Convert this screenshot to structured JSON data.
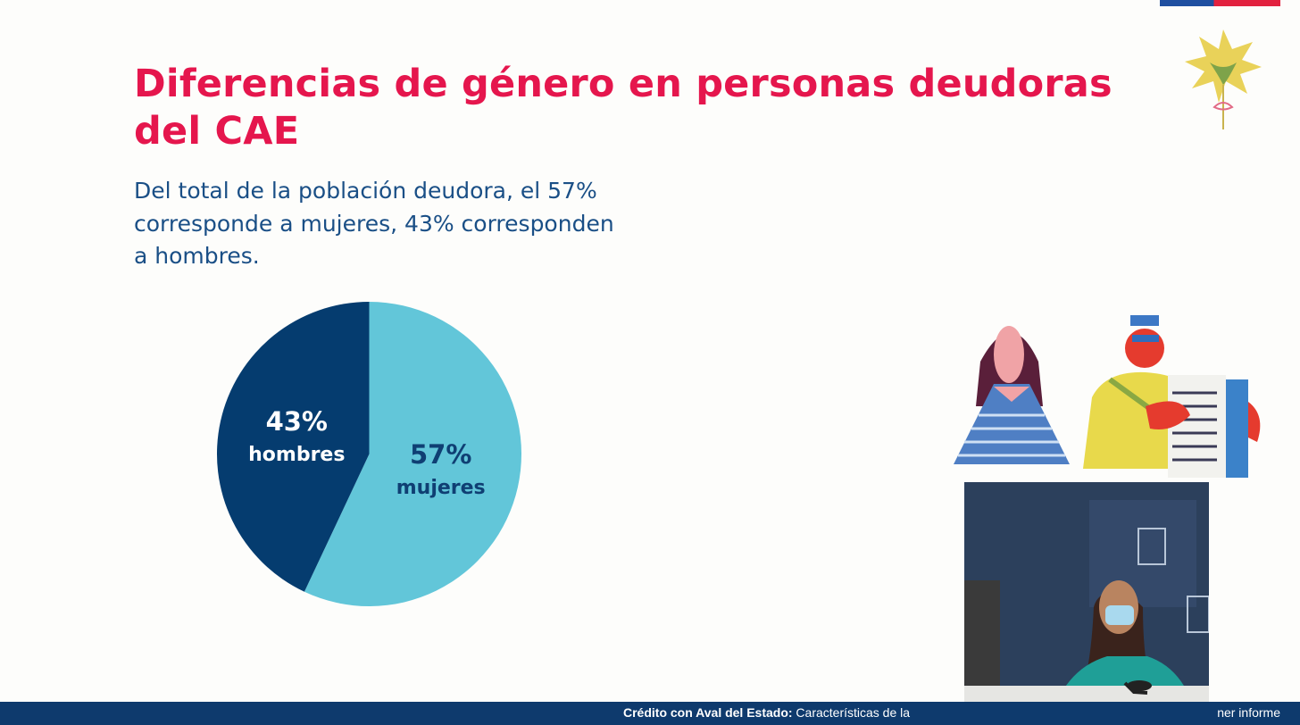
{
  "slide": {
    "title": "Diferencias de género en personas deudoras del CAE",
    "description": "Del total de la población deudora, el 57% corresponde a mujeres, 43% corresponden a hombres."
  },
  "chart_data": {
    "type": "pie",
    "slices": [
      {
        "label": "mujeres",
        "pct_label": "57%",
        "value": 57,
        "color": "#62c6d9",
        "text_color": "#0f3f73"
      },
      {
        "label": "hombres",
        "pct_label": "43%",
        "value": 43,
        "color": "#053c6f",
        "text_color": "#ffffff"
      }
    ],
    "start": "12 o'clock",
    "direction": "clockwise"
  },
  "footer": {
    "bold": "Crédito con Aval del Estado:",
    "text": " Características de la",
    "end": "ner informe"
  },
  "colors": {
    "title": "#e5164d",
    "text": "#1a4f86",
    "footer": "#0e3a6d"
  }
}
